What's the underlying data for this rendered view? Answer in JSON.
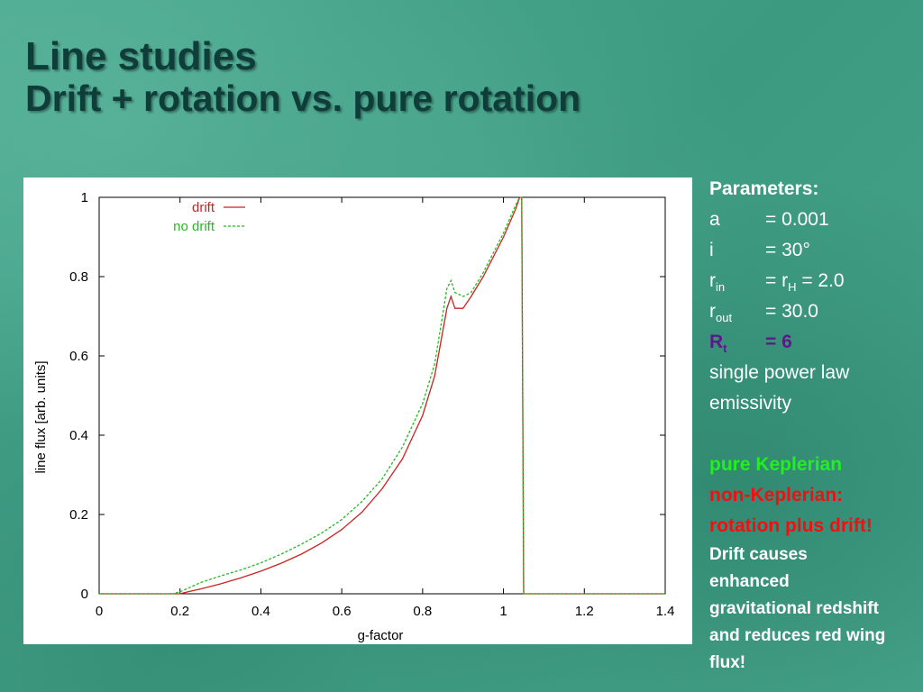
{
  "slide": {
    "title_line1": "Line studies",
    "title_line2": "Drift + rotation vs. pure rotation"
  },
  "params": {
    "heading": "Parameters:",
    "a_key": "a",
    "a_val": "= 0.001",
    "i_key": "i",
    "i_val": "= 30°",
    "rin_key": "r",
    "rin_sub": "in",
    "rin_val_pre": "= r",
    "rin_val_sub": "H",
    "rin_val_post": " = 2.0",
    "rout_key": "r",
    "rout_sub": "out",
    "rout_val": "= 30.0",
    "rt_key": "R",
    "rt_sub": "t",
    "rt_val": "= 6",
    "emiss_1": "single power law",
    "emiss_2": "emissivity",
    "pure": "pure Keplerian",
    "nonkep": "non-Keplerian:",
    "rotdrift": "rotation plus drift!",
    "note_1": "Drift causes",
    "note_2": "enhanced",
    "note_3": "gravitational redshift",
    "note_4": "and reduces red wing",
    "note_5": "flux!"
  },
  "colors": {
    "drift": "#cc2222",
    "no_drift": "#22bb22",
    "params_rt": "#5a1a8a",
    "pure": "#22ee22",
    "nonkep": "#ee1111"
  },
  "chart_data": {
    "type": "line",
    "xlabel": "g-factor",
    "ylabel": "line flux [arb. units]",
    "xlim": [
      0,
      1.4
    ],
    "ylim": [
      0,
      1
    ],
    "xticks": [
      "0",
      "0.2",
      "0.4",
      "0.6",
      "0.8",
      "1",
      "1.2",
      "1.4"
    ],
    "yticks": [
      "0",
      "0.2",
      "0.4",
      "0.6",
      "0.8",
      "1"
    ],
    "legend": "top-left",
    "grid": false,
    "series": [
      {
        "name": "drift",
        "style": "solid",
        "x": [
          0,
          0.2,
          0.22,
          0.25,
          0.3,
          0.35,
          0.4,
          0.45,
          0.5,
          0.55,
          0.6,
          0.65,
          0.7,
          0.75,
          0.8,
          0.83,
          0.86,
          0.87,
          0.88,
          0.9,
          0.92,
          0.95,
          1.0,
          1.03,
          1.04,
          1.045,
          1.05,
          1.4
        ],
        "y": [
          0,
          0,
          0.005,
          0.012,
          0.025,
          0.04,
          0.057,
          0.077,
          0.1,
          0.128,
          0.162,
          0.206,
          0.265,
          0.34,
          0.45,
          0.55,
          0.72,
          0.75,
          0.72,
          0.72,
          0.75,
          0.8,
          0.9,
          0.97,
          1.0,
          1.0,
          0,
          0
        ]
      },
      {
        "name": "no drift",
        "style": "dashed",
        "x": [
          0,
          0.18,
          0.2,
          0.25,
          0.3,
          0.35,
          0.4,
          0.45,
          0.5,
          0.55,
          0.6,
          0.65,
          0.7,
          0.75,
          0.8,
          0.83,
          0.86,
          0.87,
          0.88,
          0.9,
          0.92,
          0.95,
          1.0,
          1.03,
          1.04,
          1.045,
          1.05,
          1.4
        ],
        "y": [
          0,
          0,
          0.005,
          0.028,
          0.045,
          0.06,
          0.078,
          0.1,
          0.125,
          0.153,
          0.187,
          0.233,
          0.29,
          0.37,
          0.48,
          0.58,
          0.77,
          0.79,
          0.76,
          0.75,
          0.76,
          0.81,
          0.91,
          0.98,
          1.0,
          1.0,
          0,
          0
        ]
      }
    ]
  }
}
